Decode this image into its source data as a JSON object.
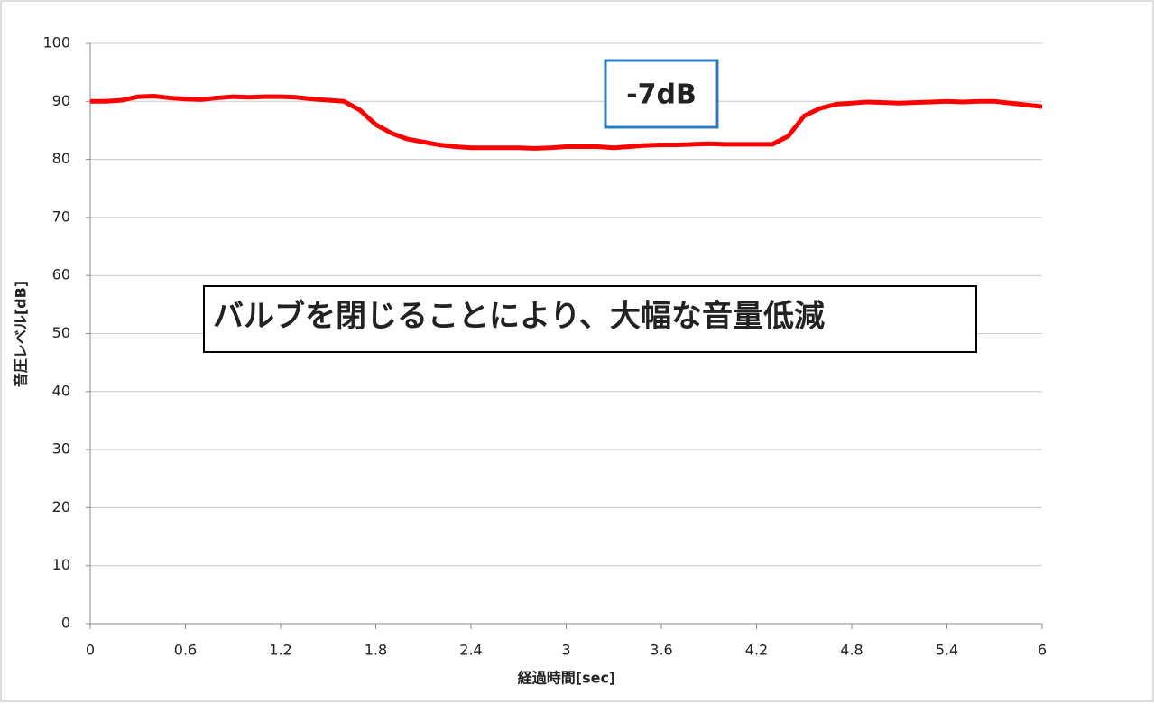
{
  "chart_data": {
    "type": "line",
    "x_label": "経過時間[sec]",
    "y_label": "音圧レベル[dB]",
    "xlim": [
      0,
      6
    ],
    "xticks": [
      0,
      0.6,
      1.2,
      1.8,
      2.4,
      3,
      3.6,
      4.2,
      4.8,
      5.4,
      6
    ],
    "ylim": [
      0,
      100
    ],
    "yticks": [
      0,
      10,
      20,
      30,
      40,
      50,
      60,
      70,
      80,
      90,
      100
    ],
    "grid": true,
    "x": [
      0,
      0.1,
      0.2,
      0.3,
      0.4,
      0.5,
      0.6,
      0.7,
      0.8,
      0.9,
      1.0,
      1.1,
      1.2,
      1.3,
      1.4,
      1.5,
      1.6,
      1.7,
      1.8,
      1.9,
      2.0,
      2.1,
      2.2,
      2.3,
      2.4,
      2.5,
      2.6,
      2.7,
      2.8,
      2.9,
      3.0,
      3.1,
      3.2,
      3.3,
      3.4,
      3.5,
      3.6,
      3.7,
      3.8,
      3.9,
      4.0,
      4.1,
      4.2,
      4.3,
      4.4,
      4.5,
      4.6,
      4.7,
      4.8,
      4.9,
      5.0,
      5.1,
      5.2,
      5.3,
      5.4,
      5.5,
      5.6,
      5.7,
      5.8,
      5.9,
      6.0
    ],
    "series": [
      {
        "color": "#ff0000",
        "values": [
          90,
          90,
          90.2,
          90.8,
          90.9,
          90.6,
          90.4,
          90.3,
          90.6,
          90.8,
          90.7,
          90.8,
          90.8,
          90.7,
          90.4,
          90.2,
          90.0,
          88.5,
          86,
          84.5,
          83.5,
          83,
          82.5,
          82.2,
          82,
          82,
          82,
          82,
          81.9,
          82,
          82.2,
          82.2,
          82.2,
          82,
          82.2,
          82.4,
          82.5,
          82.5,
          82.6,
          82.7,
          82.6,
          82.6,
          82.6,
          82.6,
          84,
          87.5,
          88.8,
          89.5,
          89.7,
          89.9,
          89.8,
          89.7,
          89.8,
          89.9,
          90,
          89.9,
          90,
          90,
          89.7,
          89.4,
          89.1
        ]
      }
    ],
    "annotations": [
      "-7dB",
      "バルブを閉じることにより、大幅な音量低減"
    ]
  }
}
